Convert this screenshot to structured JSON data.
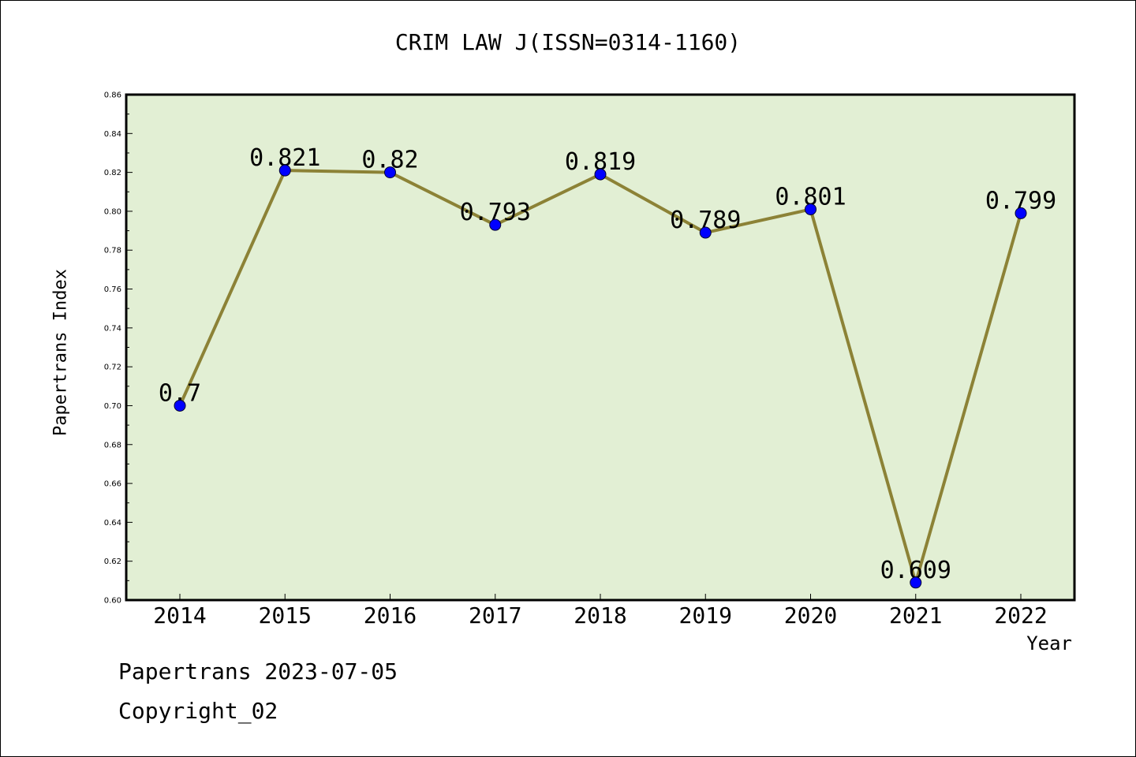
{
  "chart_data": {
    "type": "line",
    "title": "CRIM LAW J(ISSN=0314-1160)",
    "xlabel": "Year",
    "ylabel": "Papertrans Index",
    "categories": [
      "2014",
      "2015",
      "2016",
      "2017",
      "2018",
      "2019",
      "2020",
      "2021",
      "2022"
    ],
    "series": [
      {
        "values": [
          0.7,
          0.821,
          0.82,
          0.793,
          0.819,
          0.789,
          0.801,
          0.609,
          0.799
        ],
        "data_labels": [
          "0.7",
          "0.821",
          "0.82",
          "0.793",
          "0.819",
          "0.789",
          "0.801",
          "0.609",
          "0.799"
        ]
      }
    ],
    "ylim": [
      0.6,
      0.86
    ],
    "yticks": [
      "0.60",
      "0.62",
      "0.64",
      "0.66",
      "0.68",
      "0.70",
      "0.72",
      "0.74",
      "0.76",
      "0.78",
      "0.80",
      "0.82",
      "0.84",
      "0.86"
    ],
    "grid": false,
    "colors": {
      "plot_background": "#e2efd4",
      "line": "#8c8236",
      "marker": "#0000ff"
    }
  },
  "footer": {
    "date_text": "Papertrans 2023-07-05",
    "copyright_text": "Copyright_02"
  }
}
